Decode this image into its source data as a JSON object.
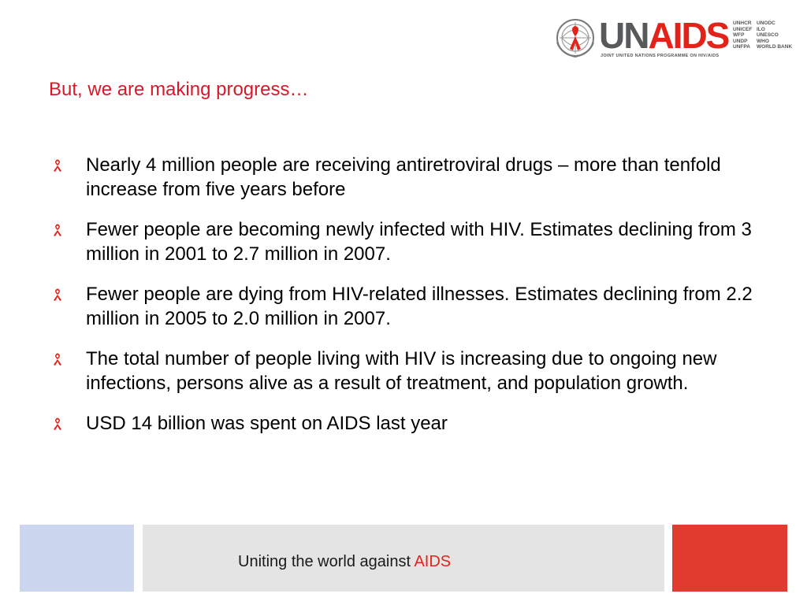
{
  "logo": {
    "wordmark_un": "UN",
    "wordmark_aids": "AIDS",
    "tagline": "JOINT UNITED NATIONS PROGRAMME ON HIV/AIDS",
    "cosponsors_col1": [
      "UNHCR",
      "UNICEF",
      "WFP",
      "UNDP",
      "UNFPA"
    ],
    "cosponsors_col2": [
      "UNODC",
      "ILO",
      "UNESCO",
      "WHO",
      "WORLD BANK"
    ],
    "emblem_icon": "un-emblem-with-ribbon-icon"
  },
  "title": "But, we are making progress…",
  "bullet_icon": "red-ribbon-icon",
  "bullets": [
    "Nearly 4 million people are receiving antiretroviral drugs – more than tenfold increase from five years before",
    "Fewer people are becoming newly infected with HIV.  Estimates declining from 3 million in 2001 to 2.7 million in 2007.",
    "Fewer people are dying from HIV-related illnesses. Estimates declining from 2.2 million in 2005 to 2.0 million in 2007.",
    "The total number of people living with HIV is increasing due to ongoing new infections, persons alive as a result of treatment, and population growth.",
    "USD 14 billion was spent on AIDS last year"
  ],
  "footer": {
    "text_main": "Uniting the world against ",
    "text_accent": "AIDS"
  },
  "colors": {
    "title": "#d7182a",
    "accent_red": "#e2231a",
    "footer_left": "#ccd6ee",
    "footer_mid": "#e4e4e4",
    "footer_right": "#e13a2f"
  }
}
